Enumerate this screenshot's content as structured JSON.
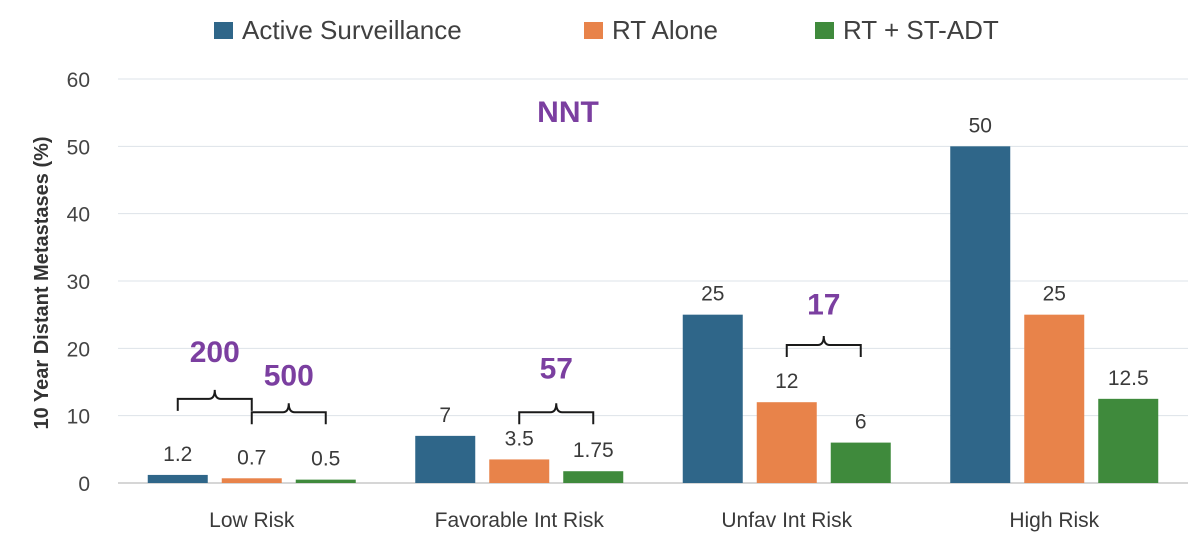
{
  "chart_data": {
    "type": "bar",
    "ylabel": "10 Year Distant Metastases (%)",
    "ylim": [
      0,
      60
    ],
    "yticks": [
      0,
      10,
      20,
      30,
      40,
      50,
      60
    ],
    "grid": true,
    "legend_position": "top",
    "categories": [
      "Low Risk",
      "Favorable Int Risk",
      "Unfav Int Risk",
      "High Risk"
    ],
    "series": [
      {
        "name": "Active Surveillance",
        "color": "#2f6689",
        "values": [
          1.2,
          7,
          25,
          50
        ],
        "labels": [
          "1.2",
          "7",
          "25",
          "50"
        ]
      },
      {
        "name": "RT Alone",
        "color": "#e8834a",
        "values": [
          0.7,
          3.5,
          12,
          25
        ],
        "labels": [
          "0.7",
          "3.5",
          "12",
          "25"
        ]
      },
      {
        "name": "RT + ST-ADT",
        "color": "#3f8a3c",
        "values": [
          0.5,
          1.75,
          6,
          12.5
        ],
        "labels": [
          "0.5",
          "1.75",
          "6",
          "12.5"
        ]
      }
    ],
    "annotations": {
      "title_label": "NNT",
      "color": "#7b3fa0",
      "brackets": [
        {
          "text": "200",
          "category": 0,
          "from_series": 0,
          "to_series": 1,
          "y": 12.5,
          "label_y": 18
        },
        {
          "text": "500",
          "category": 0,
          "from_series": 1,
          "to_series": 2,
          "y": 10.5,
          "label_y": 14.5
        },
        {
          "text": "57",
          "category": 1,
          "from_series": 1,
          "to_series": 2,
          "y": 10.5,
          "label_y": 15.5
        },
        {
          "text": "17",
          "category": 2,
          "from_series": 1,
          "to_series": 2,
          "y": 20.5,
          "label_y": 25
        }
      ]
    }
  }
}
